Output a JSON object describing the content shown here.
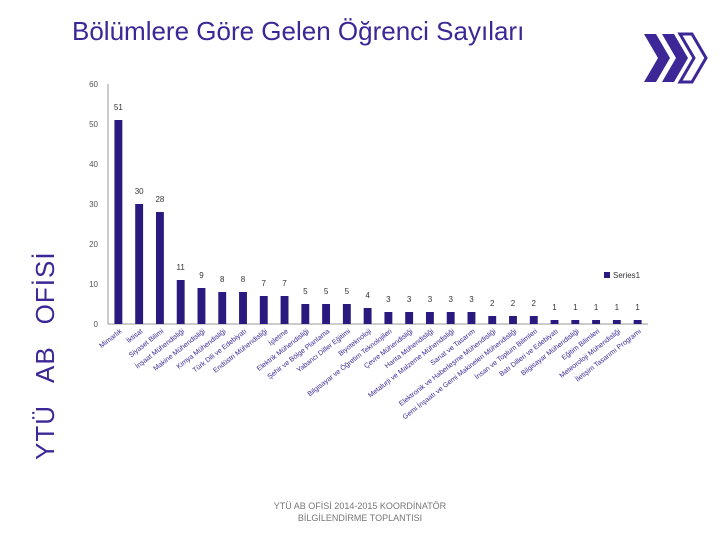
{
  "page": {
    "title": "Bölümlere Göre Gelen Öğrenci Sayıları",
    "sidebar_words": [
      "YTÜ",
      "AB",
      "OFİSİ"
    ],
    "footer_line1": "YTÜ AB OFİSİ 2014-2015 KOORDİNATÖR",
    "footer_line2": "BİLGİLENDİRME TOPLANTISI",
    "logo_icon": "double-chevron-right-icon"
  },
  "colors": {
    "brand": "#3d2796",
    "bar": "#2a1a80",
    "axis": "#999999"
  },
  "chart_data": {
    "type": "bar",
    "title": "Bölümlere Göre Gelen Öğrenci Sayıları",
    "xlabel": "",
    "ylabel": "",
    "ylim": [
      0,
      60
    ],
    "yticks": [
      0,
      10,
      20,
      30,
      40,
      50,
      60
    ],
    "grid": false,
    "legend_position": "right",
    "series": [
      {
        "name": "Series1",
        "values": [
          51,
          30,
          28,
          11,
          9,
          8,
          8,
          7,
          7,
          5,
          5,
          5,
          4,
          3,
          3,
          3,
          3,
          3,
          2,
          2,
          2,
          1,
          1,
          1,
          1,
          1
        ]
      }
    ],
    "categories": [
      "Mimarlık",
      "İktisat",
      "Siyaset Bilimi",
      "İnşaat Mühendisliği",
      "Makine Mühendisliği",
      "Kimya Mühendisliği",
      "Türk Dili ve Edebiyatı",
      "Endüstri Mühendisliği",
      "İşletme",
      "Elektrik Mühendisliği",
      "Şehir ve Bölge Planlama",
      "Yabancı Diller Eğitimi",
      "Biyoteknoloji",
      "Bilgisayar ve Öğretim Teknolojileri",
      "Çevre Mühendisliği",
      "Harita Mühendisliği",
      "Metalurji ve Malzeme Mühendisliği",
      "Sanat ve Tasarım",
      "Elektronik ve Haberleşme Mühendisliği",
      "Gemi İnşaatı ve Gemi Makineleri Mühendisliği",
      "İnsan ve Toplum Bilimleri",
      "Batı Dilleri ve Edebiyatı",
      "Bilgisayar Mühendisliği",
      "Eğitim Bilimleri",
      "Meteoroloji Mühendisliği",
      "İletişim Tasarımı Programı"
    ]
  }
}
